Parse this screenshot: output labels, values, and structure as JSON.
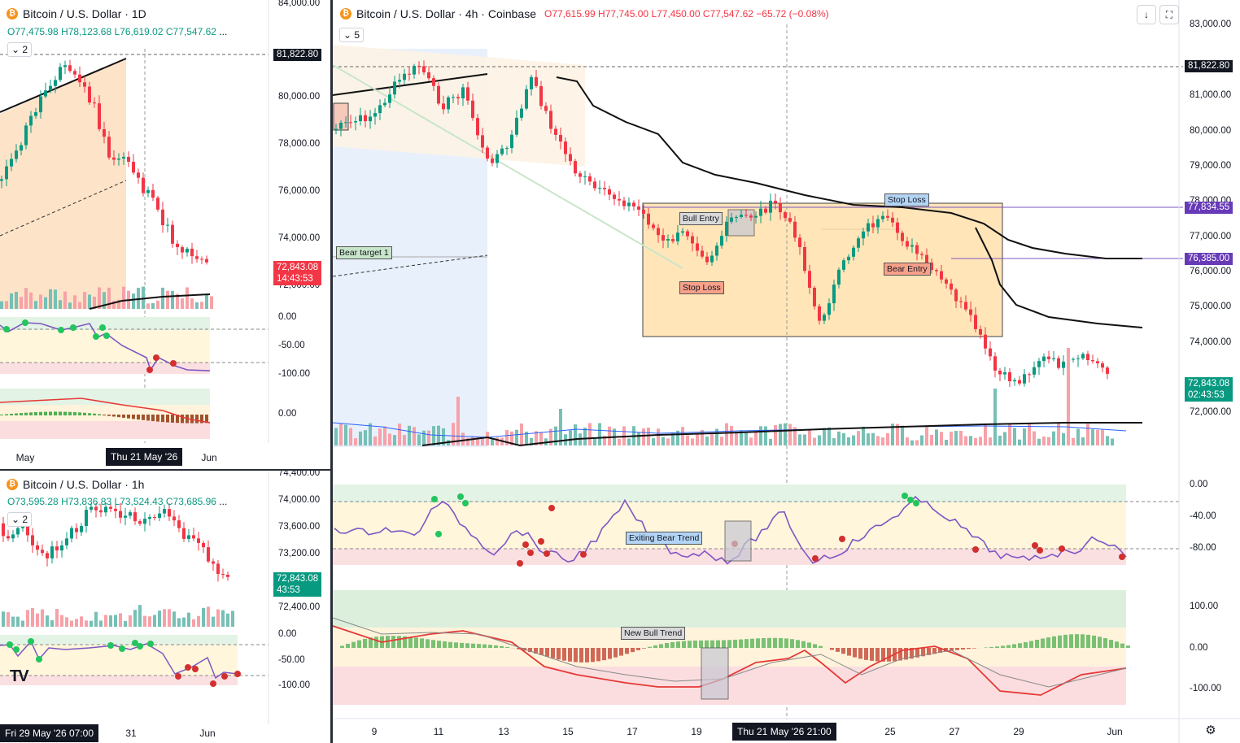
{
  "colors": {
    "up": "#089981",
    "down": "#f23645",
    "up_light": "#76c0b5",
    "down_light": "#f7a1a8",
    "accent": "#2962ff",
    "purple": "#7e57c2",
    "zone": "#ffe5b8"
  },
  "panes": {
    "daily": {
      "title": "Bitcoin / U.S. Dollar · 1D",
      "ohlc": {
        "o": "O77,475.98",
        "h": "H78,123.68",
        "l": "L76,619.02",
        "c": "C77,547.62",
        "more": "..."
      },
      "chip": "2",
      "price_labels": [
        "84,000.00",
        "80,000.00",
        "78,000.00",
        "76,000.00",
        "74,000.00",
        "72,000.00"
      ],
      "tag_line": "81,822.80",
      "tag_last": {
        "price": "72,843.08",
        "countdown": "14:43:53"
      },
      "osc_labels": [
        "0.00",
        "-50.00",
        "-100.00"
      ],
      "macd_labels": [
        "0.00"
      ],
      "x_labels": [
        "May",
        "Jun"
      ],
      "x_selected": "Thu 21 May '26"
    },
    "hourly": {
      "title": "Bitcoin / U.S. Dollar · 1h",
      "ohlc": {
        "o": "O73,595.28",
        "h": "H73,836.83",
        "l": "L73,524.43",
        "c": "C73,685.96",
        "more": "..."
      },
      "chip": "2",
      "price_labels": [
        "74,400.00",
        "74,000.00",
        "73,600.00",
        "73,200.00",
        "72,400.00"
      ],
      "tag_last": {
        "price": "72,843.08",
        "countdown": "43:53"
      },
      "osc_labels": [
        "0.00",
        "-50.00",
        "-100.00"
      ],
      "x_labels": [
        "31",
        "Jun"
      ],
      "x_selected": "Fri 29 May '26 07:00",
      "logo": "TV"
    },
    "main": {
      "title": "Bitcoin / U.S. Dollar · 4h · Coinbase",
      "ohlc": {
        "o": "O77,615.99",
        "h": "H77,745.00",
        "l": "L77,450.00",
        "c": "C77,547.62",
        "chg": "−65.72 (−0.08%)"
      },
      "chip": "5",
      "price_labels": [
        "83,000.00",
        "81,000.00",
        "80,000.00",
        "79,000.00",
        "78,000.00",
        "77,000.00",
        "76,000.00",
        "75,000.00",
        "74,000.00",
        "72,000.00"
      ],
      "tag_line": "81,822.80",
      "tag_purple_1": "77,834.55",
      "tag_purple_2": "76,385.00",
      "tag_last": {
        "price": "72,843.08",
        "countdown": "02:43:53"
      },
      "osc_labels": [
        "0.00",
        "-40.00",
        "-80.00"
      ],
      "macd_labels": [
        "100.00",
        "0.00",
        "-100.00"
      ],
      "x_labels": [
        "9",
        "11",
        "13",
        "15",
        "17",
        "19",
        "25",
        "27",
        "29",
        "Jun"
      ],
      "x_selected": "Thu 21 May '26  21:00",
      "annotations": {
        "bull_entry": "Bull Entry",
        "stop_loss_top": "Stop Loss",
        "stop_loss_bottom": "Stop Loss",
        "bear_entry": "Bear Entry",
        "bear_target": "Bear target 1",
        "exiting_bear": "Exiting Bear Trend",
        "new_bull": "New Bull Trend"
      },
      "icons": {
        "down": "arrow-down-icon",
        "fullscreen": "fullscreen-icon",
        "settings": "settings-icon"
      }
    }
  }
}
